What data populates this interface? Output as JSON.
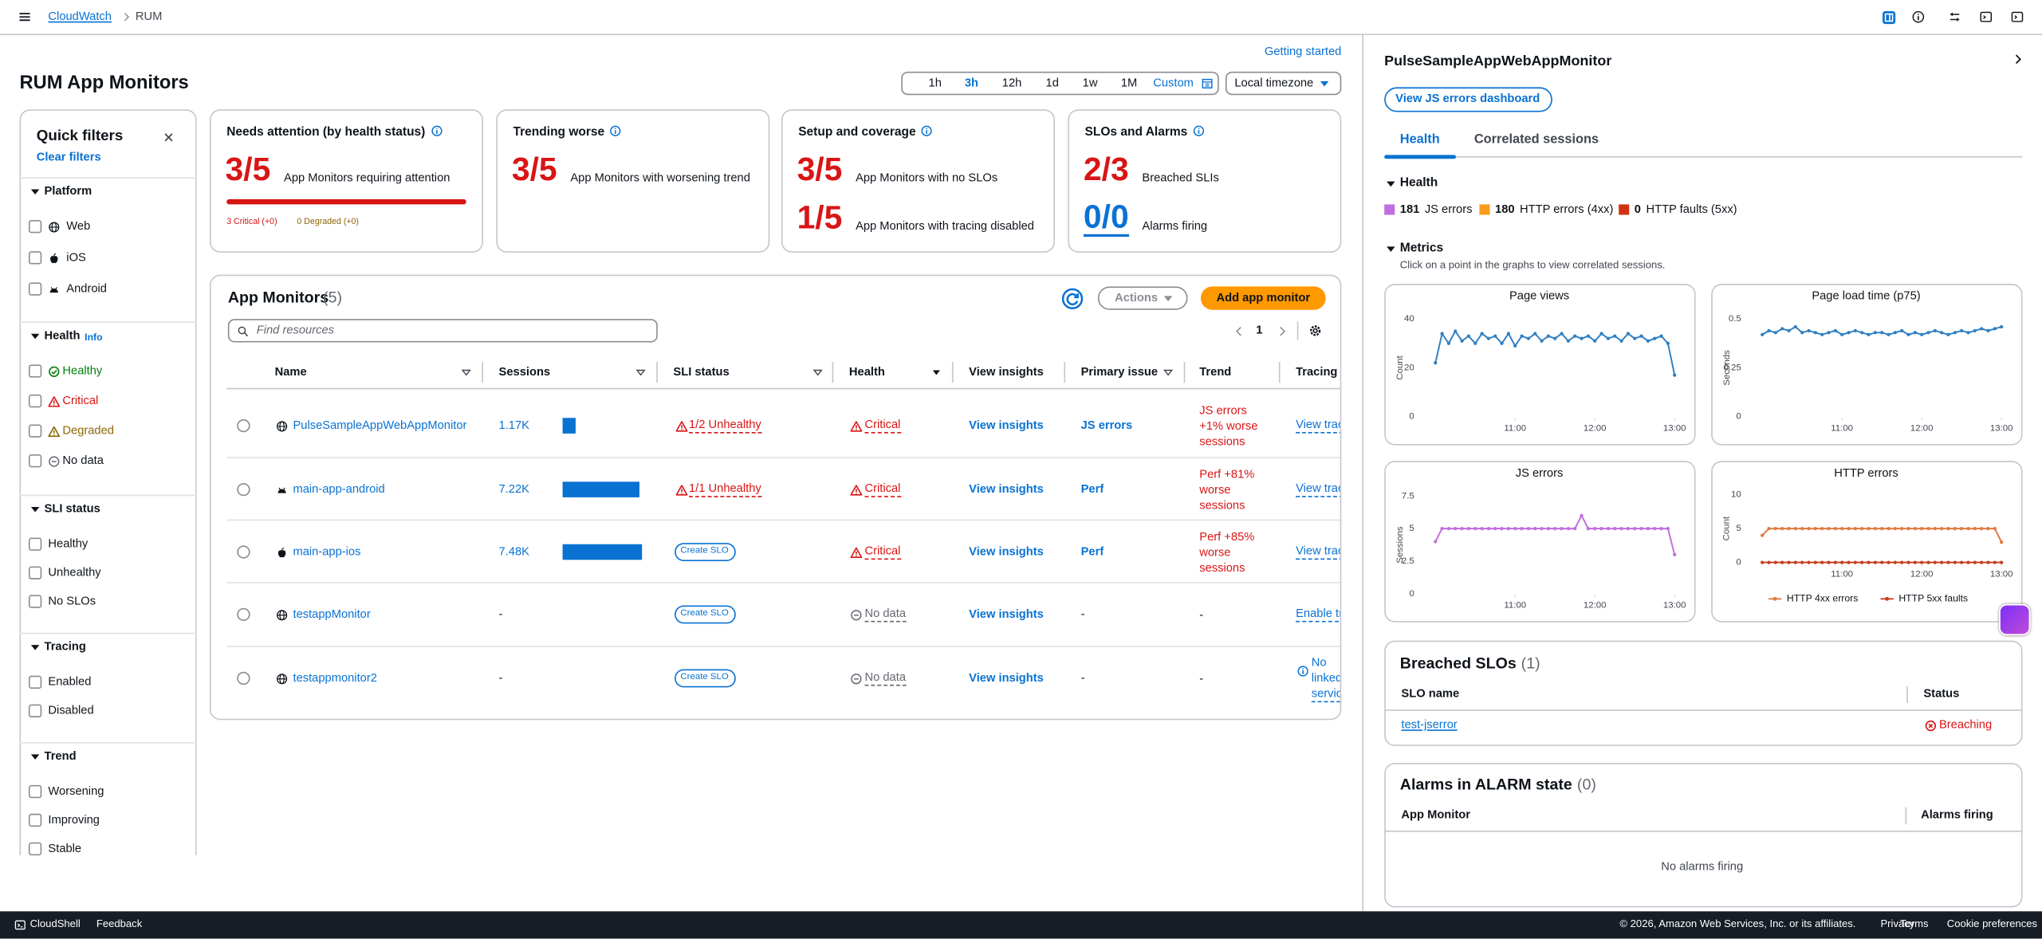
{
  "header": {
    "breadcrumbs": [
      "CloudWatch",
      "RUM"
    ]
  },
  "page": {
    "title": "RUM App Monitors",
    "getting_started": "Getting started",
    "time_ranges": [
      "1h",
      "3h",
      "12h",
      "1d",
      "1w",
      "1M",
      "Custom"
    ],
    "timezone": "Local timezone"
  },
  "filters": {
    "title": "Quick filters",
    "clear": "Clear filters",
    "groups": [
      {
        "name": "Platform",
        "options": [
          "Web",
          "iOS",
          "Android"
        ]
      },
      {
        "name": "Health",
        "info": "Info",
        "options": [
          "Healthy",
          "Critical",
          "Degraded",
          "No data"
        ]
      },
      {
        "name": "SLI status",
        "options": [
          "Healthy",
          "Unhealthy",
          "No SLOs"
        ]
      },
      {
        "name": "Tracing",
        "options": [
          "Enabled",
          "Disabled"
        ]
      },
      {
        "name": "Trend",
        "options": [
          "Worsening",
          "Improving",
          "Stable"
        ]
      }
    ]
  },
  "summary": [
    {
      "title": "Needs attention (by health status)",
      "stats": [
        {
          "value": "3/5",
          "label": "App Monitors requiring attention"
        }
      ],
      "notes": [
        "3 Critical (+0)",
        "0 Degraded (+0)"
      ]
    },
    {
      "title": "Trending worse",
      "stats": [
        {
          "value": "3/5",
          "label": "App Monitors with worsening trend"
        }
      ]
    },
    {
      "title": "Setup and coverage",
      "stats": [
        {
          "value": "3/5",
          "label": "App Monitors with no SLOs"
        },
        {
          "value": "1/5",
          "label": "App Monitors with tracing disabled"
        }
      ]
    },
    {
      "title": "SLOs and Alarms",
      "stats": [
        {
          "value": "2/3",
          "label": "Breached SLIs"
        },
        {
          "value": "0/0",
          "label": "Alarms firing"
        }
      ]
    }
  ],
  "table": {
    "title": "App Monitors",
    "count": "(5)",
    "actions": "Actions",
    "add_button": "Add app monitor",
    "search_placeholder": "Find resources",
    "page": "1",
    "columns": [
      "Name",
      "Sessions",
      "SLI status",
      "Health",
      "View insights",
      "Primary issue",
      "Trend",
      "Tracing"
    ],
    "rows": [
      {
        "name": "PulseSampleAppWebAppMonitor",
        "sessions": {
          "value": 1170,
          "label": "1.17K"
        },
        "sli": "1/2 Unhealthy",
        "health": "Critical",
        "insights": "View insights",
        "issue": "JS errors",
        "trend": "JS errors +1% worse sessions",
        "tracing": "View traces"
      },
      {
        "name": "main-app-android",
        "sessions": {
          "value": 7220,
          "label": "7.22K"
        },
        "sli": "1/1 Unhealthy",
        "health": "Critical",
        "insights": "View insights",
        "issue": "Perf",
        "trend": "Perf +81% worse sessions",
        "tracing": "View traces"
      },
      {
        "name": "main-app-ios",
        "sessions": {
          "value": 7480,
          "label": "7.48K"
        },
        "sli": "Create SLO",
        "health": "Critical",
        "insights": "View insights",
        "issue": "Perf",
        "trend": "Perf +85% worse sessions",
        "tracing": "View traces"
      },
      {
        "name": "testappMonitor",
        "sessions": "-",
        "sli": "Create SLO",
        "health": "No data",
        "insights": "View insights",
        "issue": "-",
        "trend": "-",
        "tracing": "Enable tracing"
      },
      {
        "name": "testappmonitor2",
        "sessions": "-",
        "sli": "Create SLO",
        "health": "No data",
        "insights": "View insights",
        "issue": "-",
        "trend": "-",
        "tracing": "No linked services"
      }
    ]
  },
  "panel": {
    "title": "PulseSampleAppWebAppMonitor",
    "dashboard_button": "View JS errors dashboard",
    "tabs": [
      "Health",
      "Correlated sessions"
    ],
    "health": {
      "title": "Health",
      "items": [
        {
          "count": 181,
          "label": "JS errors",
          "color": "#c06ee0"
        },
        {
          "count": 180,
          "label": "HTTP errors (4xx)",
          "color": "#f89c1c"
        },
        {
          "count": 0,
          "label": "HTTP faults (5xx)",
          "color": "#d13212"
        }
      ]
    },
    "metrics": {
      "title": "Metrics",
      "hint": "Click on a point in the graphs to view correlated sessions.",
      "charts": [
        {
          "type": "line",
          "title": "Page views",
          "ylabel": "Count",
          "ylim": [
            0,
            40
          ],
          "yticks": [
            0,
            20,
            40
          ],
          "xlim": [
            590,
            786
          ],
          "xticks": [
            {
              "value": 660,
              "label": "11:00"
            },
            {
              "value": 720,
              "label": "12:00"
            },
            {
              "value": 780,
              "label": "13:00"
            }
          ],
          "x": [
            600,
            605,
            610,
            615,
            620,
            625,
            630,
            635,
            640,
            645,
            650,
            655,
            660,
            665,
            670,
            675,
            680,
            685,
            690,
            695,
            700,
            705,
            710,
            715,
            720,
            725,
            730,
            735,
            740,
            745,
            750,
            755,
            760,
            765,
            770,
            775,
            780
          ],
          "series": [
            {
              "color": "#2f7fc1",
              "values": [
                22,
                34,
                30,
                35,
                31,
                33,
                30,
                34,
                32,
                33,
                30,
                34,
                29,
                33,
                32,
                34,
                31,
                33,
                32,
                34,
                31,
                33,
                32,
                33,
                31,
                34,
                32,
                33,
                31,
                34,
                32,
                33,
                31,
                32,
                33,
                30,
                17
              ]
            }
          ]
        },
        {
          "type": "line",
          "title": "Page load time (p75)",
          "ylabel": "Seconds",
          "ylim": [
            0,
            0.5
          ],
          "yticks": [
            0,
            0.25,
            0.5
          ],
          "xlim": [
            590,
            786
          ],
          "xticks": [
            {
              "value": 660,
              "label": "11:00"
            },
            {
              "value": 720,
              "label": "12:00"
            },
            {
              "value": 780,
              "label": "13:00"
            }
          ],
          "x": [
            600,
            605,
            610,
            615,
            620,
            625,
            630,
            635,
            640,
            645,
            650,
            655,
            660,
            665,
            670,
            675,
            680,
            685,
            690,
            695,
            700,
            705,
            710,
            715,
            720,
            725,
            730,
            735,
            740,
            745,
            750,
            755,
            760,
            765,
            770,
            775,
            780
          ],
          "series": [
            {
              "color": "#2f7fc1",
              "values": [
                0.42,
                0.44,
                0.43,
                0.45,
                0.44,
                0.46,
                0.43,
                0.44,
                0.43,
                0.42,
                0.43,
                0.44,
                0.42,
                0.43,
                0.44,
                0.43,
                0.42,
                0.43,
                0.43,
                0.42,
                0.43,
                0.44,
                0.42,
                0.43,
                0.42,
                0.43,
                0.44,
                0.43,
                0.42,
                0.43,
                0.44,
                0.43,
                0.44,
                0.45,
                0.44,
                0.45,
                0.46
              ]
            }
          ]
        },
        {
          "type": "line",
          "title": "JS errors",
          "ylabel": "Sessions",
          "ylim": [
            0,
            7.5
          ],
          "yticks": [
            0,
            2.5,
            5,
            7.5
          ],
          "xlim": [
            590,
            786
          ],
          "xticks": [
            {
              "value": 660,
              "label": "11:00"
            },
            {
              "value": 720,
              "label": "12:00"
            },
            {
              "value": 780,
              "label": "13:00"
            }
          ],
          "x": [
            600,
            605,
            610,
            615,
            620,
            625,
            630,
            635,
            640,
            645,
            650,
            655,
            660,
            665,
            670,
            675,
            680,
            685,
            690,
            695,
            700,
            705,
            710,
            715,
            720,
            725,
            730,
            735,
            740,
            745,
            750,
            755,
            760,
            765,
            770,
            775,
            780
          ],
          "series": [
            {
              "color": "#c06ee0",
              "values": [
                4,
                5,
                5,
                5,
                5,
                5,
                5,
                5,
                5,
                5,
                5,
                5,
                5,
                5,
                5,
                5,
                5,
                5,
                5,
                5,
                5,
                5,
                6,
                5,
                5,
                5,
                5,
                5,
                5,
                5,
                5,
                5,
                5,
                5,
                5,
                5,
                3
              ]
            }
          ]
        },
        {
          "type": "line",
          "title": "HTTP errors",
          "ylabel": "Count",
          "ylim": [
            0,
            10
          ],
          "yticks": [
            0,
            5,
            10
          ],
          "xlim": [
            590,
            786
          ],
          "xticks": [
            {
              "value": 660,
              "label": "11:00"
            },
            {
              "value": 720,
              "label": "12:00"
            },
            {
              "value": 780,
              "label": "13:00"
            }
          ],
          "x": [
            600,
            605,
            610,
            615,
            620,
            625,
            630,
            635,
            640,
            645,
            650,
            655,
            660,
            665,
            670,
            675,
            680,
            685,
            690,
            695,
            700,
            705,
            710,
            715,
            720,
            725,
            730,
            735,
            740,
            745,
            750,
            755,
            760,
            765,
            770,
            775,
            780
          ],
          "series": [
            {
              "name": "HTTP 4xx errors",
              "color": "#e07941",
              "values": [
                4,
                5,
                5,
                5,
                5,
                5,
                5,
                5,
                5,
                5,
                5,
                5,
                5,
                5,
                5,
                5,
                5,
                5,
                5,
                5,
                5,
                5,
                5,
                5,
                5,
                5,
                5,
                5,
                5,
                5,
                5,
                5,
                5,
                5,
                5,
                5,
                3
              ]
            },
            {
              "name": "HTTP 5xx faults",
              "color": "#c33d1e",
              "values": [
                0,
                0,
                0,
                0,
                0,
                0,
                0,
                0,
                0,
                0,
                0,
                0,
                0,
                0,
                0,
                0,
                0,
                0,
                0,
                0,
                0,
                0,
                0,
                0,
                0,
                0,
                0,
                0,
                0,
                0,
                0,
                0,
                0,
                0,
                0,
                0,
                0
              ]
            }
          ]
        }
      ]
    },
    "breached_slos": {
      "title": "Breached SLOs",
      "count": "(1)",
      "columns": [
        "SLO name",
        "Status"
      ],
      "rows": [
        [
          "test-jserror",
          "Breaching"
        ]
      ]
    },
    "alarms": {
      "title": "Alarms in ALARM state",
      "count": "(0)",
      "columns": [
        "App Monitor",
        "Alarms firing"
      ],
      "empty": "No alarms firing"
    }
  },
  "footer": {
    "cloudshell": "CloudShell",
    "feedback": "Feedback",
    "copyright": "© 2026, Amazon Web Services, Inc. or its affiliates.",
    "links": [
      "Privacy",
      "Terms",
      "Cookie preferences"
    ]
  }
}
